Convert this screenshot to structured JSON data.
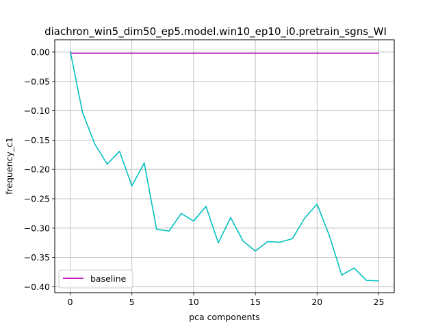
{
  "chart_data": {
    "type": "line",
    "title": "diachron_win5_dim50_ep5.model.win10_ep10_i0.pretrain_sgns_WI",
    "xlabel": "pca components",
    "ylabel": "frequency_c1",
    "xlim": [
      -1.25,
      26.25
    ],
    "ylim": [
      -0.41,
      0.021
    ],
    "xticks": [
      0,
      5,
      10,
      15,
      20,
      25
    ],
    "xtick_labels": [
      "0",
      "5",
      "10",
      "15",
      "20",
      "25"
    ],
    "yticks": [
      0.0,
      -0.05,
      -0.1,
      -0.15,
      -0.2,
      -0.25,
      -0.3,
      -0.35,
      -0.4
    ],
    "ytick_labels": [
      "0.00",
      "−0.05",
      "−0.10",
      "−0.15",
      "−0.20",
      "−0.25",
      "−0.30",
      "−0.35",
      "−0.40"
    ],
    "grid": true,
    "legend_position": "lower-left",
    "series": [
      {
        "name": "baseline",
        "color": "#bf00bf",
        "x": [
          0,
          25
        ],
        "y": [
          -0.002,
          -0.002
        ]
      },
      {
        "color": "#00bfbf",
        "x": [
          0,
          1,
          2,
          3,
          4,
          5,
          6,
          7,
          8,
          9,
          10,
          11,
          12,
          13,
          14,
          15,
          16,
          17,
          18,
          19,
          20,
          21,
          22,
          23,
          24,
          25
        ],
        "y": [
          0.002,
          -0.103,
          -0.157,
          -0.191,
          -0.169,
          -0.228,
          -0.189,
          -0.302,
          -0.305,
          -0.275,
          -0.288,
          -0.263,
          -0.325,
          -0.282,
          -0.322,
          -0.339,
          -0.323,
          -0.324,
          -0.318,
          -0.283,
          -0.259,
          -0.313,
          -0.38,
          -0.368,
          -0.389,
          -0.39
        ]
      }
    ]
  }
}
